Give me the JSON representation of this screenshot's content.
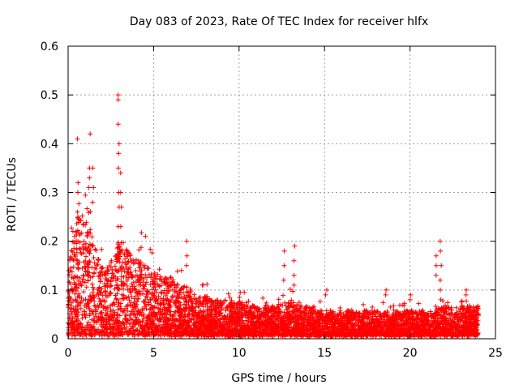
{
  "chart_data": {
    "type": "scatter",
    "title": "Day 083 of 2023, Rate Of TEC Index for receiver hlfx",
    "xlabel": "GPS time / hours",
    "ylabel": "ROTI / TECUs",
    "xlim": [
      0,
      25
    ],
    "ylim": [
      0,
      0.6
    ],
    "xticks": [
      0,
      5,
      10,
      15,
      20,
      25
    ],
    "yticks": [
      0,
      0.1,
      0.2,
      0.3,
      0.4,
      0.5,
      0.6
    ],
    "xtick_labels": [
      "0",
      "5",
      "10",
      "15",
      "20",
      "25"
    ],
    "ytick_labels": [
      "0",
      "0.1",
      "0.2",
      "0.3",
      "0.4",
      "0.5",
      "0.6"
    ],
    "grid": true,
    "marker": "+",
    "color": "#ff0000",
    "data_range_hours": [
      0,
      24
    ],
    "envelope": {
      "x": [
        0,
        0.3,
        0.6,
        1.0,
        1.3,
        1.6,
        2.0,
        2.5,
        3.0,
        3.5,
        4.0,
        4.5,
        5.0,
        5.5,
        6.0,
        6.5,
        7.0,
        7.5,
        8.0,
        9.0,
        10.0,
        11.0,
        12.0,
        13.0,
        14.0,
        15.0,
        16.0,
        17.0,
        18.0,
        19.0,
        20.0,
        21.0,
        22.0,
        23.0,
        24.0
      ],
      "typical_max": [
        0.13,
        0.22,
        0.25,
        0.24,
        0.22,
        0.18,
        0.14,
        0.14,
        0.2,
        0.18,
        0.16,
        0.15,
        0.13,
        0.12,
        0.12,
        0.1,
        0.1,
        0.08,
        0.08,
        0.07,
        0.07,
        0.06,
        0.06,
        0.07,
        0.06,
        0.05,
        0.05,
        0.05,
        0.05,
        0.05,
        0.05,
        0.05,
        0.06,
        0.06,
        0.06
      ]
    },
    "spikes": [
      {
        "x": 0.55,
        "values": [
          0.41,
          0.32,
          0.3,
          0.26
        ]
      },
      {
        "x": 1.25,
        "values": [
          0.42,
          0.35,
          0.33,
          0.31
        ]
      },
      {
        "x": 1.45,
        "values": [
          0.35,
          0.31,
          0.28
        ]
      },
      {
        "x": 2.95,
        "values": [
          0.5,
          0.49,
          0.44,
          0.4,
          0.38,
          0.35,
          0.3,
          0.27,
          0.23
        ]
      },
      {
        "x": 3.1,
        "values": [
          0.34,
          0.3,
          0.27,
          0.23
        ]
      },
      {
        "x": 4.5,
        "values": [
          0.21,
          0.15
        ]
      },
      {
        "x": 6.95,
        "values": [
          0.2,
          0.17,
          0.15
        ]
      },
      {
        "x": 12.65,
        "values": [
          0.18,
          0.15,
          0.12
        ]
      },
      {
        "x": 13.25,
        "values": [
          0.19,
          0.16,
          0.13,
          0.11
        ]
      },
      {
        "x": 15.1,
        "values": [
          0.1,
          0.09
        ]
      },
      {
        "x": 18.6,
        "values": [
          0.1,
          0.09
        ]
      },
      {
        "x": 20.0,
        "values": [
          0.09,
          0.08
        ]
      },
      {
        "x": 21.5,
        "values": [
          0.17,
          0.15,
          0.13
        ]
      },
      {
        "x": 21.8,
        "values": [
          0.2,
          0.18,
          0.15,
          0.12,
          0.1,
          0.08
        ]
      },
      {
        "x": 23.3,
        "values": [
          0.1,
          0.09
        ]
      }
    ]
  }
}
